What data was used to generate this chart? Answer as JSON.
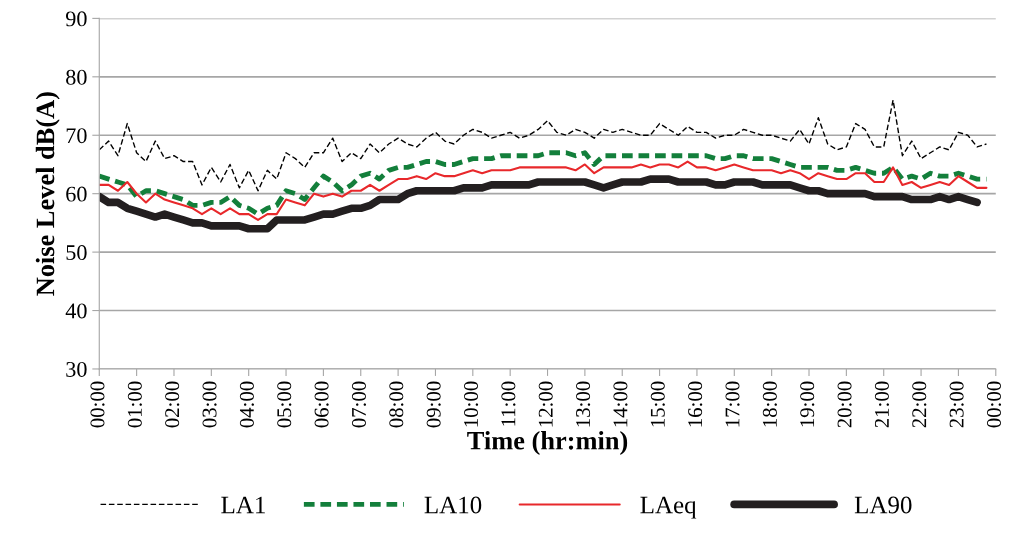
{
  "chart_data": {
    "type": "line",
    "xlabel": "Time (hr:min)",
    "ylabel": "Noise Level dB(A)",
    "x": [
      0,
      0.25,
      0.5,
      0.75,
      1,
      1.25,
      1.5,
      1.75,
      2,
      2.25,
      2.5,
      2.75,
      3,
      3.25,
      3.5,
      3.75,
      4,
      4.25,
      4.5,
      4.75,
      5,
      5.25,
      5.5,
      5.75,
      6,
      6.25,
      6.5,
      6.75,
      7,
      7.25,
      7.5,
      7.75,
      8,
      8.25,
      8.5,
      8.75,
      9,
      9.25,
      9.5,
      9.75,
      10,
      10.25,
      10.5,
      10.75,
      11,
      11.25,
      11.5,
      11.75,
      12,
      12.25,
      12.5,
      12.75,
      13,
      13.25,
      13.5,
      13.75,
      14,
      14.25,
      14.5,
      14.75,
      15,
      15.25,
      15.5,
      15.75,
      16,
      16.25,
      16.5,
      16.75,
      17,
      17.25,
      17.5,
      17.75,
      18,
      18.25,
      18.5,
      18.75,
      19,
      19.25,
      19.5,
      19.75,
      20,
      20.25,
      20.5,
      20.75,
      21,
      21.25,
      21.5,
      21.75,
      22,
      22.25,
      22.5,
      22.75,
      23,
      23.25,
      23.5,
      23.75
    ],
    "xlim": [
      0,
      24
    ],
    "xticks": [
      {
        "value": 0,
        "label": "00:00"
      },
      {
        "value": 1,
        "label": "01:00"
      },
      {
        "value": 2,
        "label": "02:00"
      },
      {
        "value": 3,
        "label": "03:00"
      },
      {
        "value": 4,
        "label": "04:00"
      },
      {
        "value": 5,
        "label": "05:00"
      },
      {
        "value": 6,
        "label": "06:00"
      },
      {
        "value": 7,
        "label": "07:00"
      },
      {
        "value": 8,
        "label": "08:00"
      },
      {
        "value": 9,
        "label": "09:00"
      },
      {
        "value": 10,
        "label": "10:00"
      },
      {
        "value": 11,
        "label": "11:00"
      },
      {
        "value": 12,
        "label": "12:00"
      },
      {
        "value": 13,
        "label": "13:00"
      },
      {
        "value": 14,
        "label": "14:00"
      },
      {
        "value": 15,
        "label": "15:00"
      },
      {
        "value": 16,
        "label": "16:00"
      },
      {
        "value": 17,
        "label": "17:00"
      },
      {
        "value": 18,
        "label": "18:00"
      },
      {
        "value": 19,
        "label": "19:00"
      },
      {
        "value": 20,
        "label": "20:00"
      },
      {
        "value": 21,
        "label": "21:00"
      },
      {
        "value": 22,
        "label": "22:00"
      },
      {
        "value": 23,
        "label": "23:00"
      },
      {
        "value": 24,
        "label": "00:00"
      }
    ],
    "ylim": [
      30,
      90
    ],
    "yticks": [
      30,
      40,
      50,
      60,
      70,
      80,
      90
    ],
    "grid": "y",
    "legend": "bottom",
    "marker": "none",
    "series": [
      {
        "name": "LA1",
        "color": "#000000",
        "line_style": "dashed",
        "values": [
          67.5,
          69,
          66.5,
          72,
          67,
          65.5,
          69,
          66,
          66.5,
          65.5,
          65.5,
          61.5,
          64.5,
          62,
          65,
          61,
          64,
          60.5,
          64,
          62.5,
          67,
          66,
          64.5,
          67,
          67,
          69.5,
          65.5,
          67,
          66,
          68.5,
          67,
          68.5,
          69.5,
          68.5,
          68,
          69.5,
          70.5,
          69,
          68.5,
          70,
          71,
          70.5,
          69.5,
          70,
          70.5,
          69.5,
          70,
          71,
          72.5,
          70.5,
          70,
          71,
          70.5,
          69.5,
          71,
          70.5,
          71,
          70.5,
          70,
          70,
          72,
          71,
          70,
          71.5,
          70.5,
          70.5,
          69.5,
          70,
          70,
          71,
          70.5,
          70,
          70,
          69.5,
          69,
          71,
          68.5,
          73,
          68.5,
          67.5,
          68,
          72,
          71,
          68,
          68,
          76,
          66.5,
          69,
          66,
          67,
          68,
          67.5,
          70.5,
          70,
          68,
          68.5
        ]
      },
      {
        "name": "LA10",
        "color": "#137f3b",
        "line_style": "dashed",
        "values": [
          63,
          62.5,
          62,
          61.5,
          59.5,
          60.5,
          60.5,
          60,
          59.5,
          59,
          58,
          58,
          58.5,
          58.5,
          59.5,
          58,
          57.5,
          56.5,
          57.5,
          58,
          60.5,
          60,
          59,
          61,
          63,
          62,
          60.5,
          61.5,
          63,
          63.5,
          62.5,
          64,
          64.5,
          64.5,
          65,
          65.5,
          65.5,
          65,
          65,
          65.5,
          66,
          66,
          66,
          66.5,
          66.5,
          66.5,
          66.5,
          66.5,
          67,
          67,
          67,
          66.5,
          67,
          65,
          66.5,
          66.5,
          66.5,
          66.5,
          66.5,
          66.5,
          66.5,
          66.5,
          66.5,
          66.5,
          66.5,
          66.5,
          66,
          66,
          66.5,
          66.5,
          66,
          66,
          66,
          65.5,
          65,
          64.5,
          64.5,
          64.5,
          64.5,
          64,
          64,
          64.5,
          64,
          63.5,
          63.5,
          64.5,
          62.5,
          63,
          62.5,
          63.5,
          63,
          63,
          63.5,
          63,
          62.5,
          62.5
        ]
      },
      {
        "name": "LAeq",
        "color": "#e8282b",
        "line_style": "solid",
        "values": [
          61.5,
          61.5,
          60.5,
          62,
          60,
          58.5,
          60,
          59,
          58.5,
          58,
          57.5,
          56.5,
          57.5,
          56.5,
          57.5,
          56.5,
          56.5,
          55.5,
          56.5,
          56.5,
          59,
          58.5,
          58,
          60,
          59.5,
          60,
          59.5,
          60.5,
          60.5,
          61.5,
          60.5,
          61.5,
          62.5,
          62.5,
          63,
          62.5,
          63.5,
          63,
          63,
          63.5,
          64,
          63.5,
          64,
          64,
          64,
          64.5,
          64.5,
          64.5,
          64.5,
          64.5,
          64.5,
          64,
          65,
          63.5,
          64.5,
          64.5,
          64.5,
          64.5,
          65,
          64.5,
          65,
          65,
          64.5,
          65.5,
          64.5,
          64.5,
          64,
          64.5,
          65,
          64.5,
          64,
          64,
          64,
          63.5,
          64,
          63.5,
          62.5,
          63.5,
          63,
          62.5,
          62.5,
          63.5,
          63.5,
          62,
          62,
          64.5,
          61.5,
          62,
          61,
          61.5,
          62,
          61.5,
          63,
          62,
          61,
          61
        ]
      },
      {
        "name": "LA90",
        "color": "#231f20",
        "line_style": "solid",
        "values": [
          59.5,
          58.5,
          58.5,
          57.5,
          57,
          56.5,
          56,
          56.5,
          56,
          55.5,
          55,
          55,
          54.5,
          54.5,
          54.5,
          54.5,
          54,
          54,
          54,
          55.5,
          55.5,
          55.5,
          55.5,
          56,
          56.5,
          56.5,
          57,
          57.5,
          57.5,
          58,
          59,
          59,
          59,
          60,
          60.5,
          60.5,
          60.5,
          60.5,
          60.5,
          61,
          61,
          61,
          61.5,
          61.5,
          61.5,
          61.5,
          61.5,
          62,
          62,
          62,
          62,
          62,
          62,
          61.5,
          61,
          61.5,
          62,
          62,
          62,
          62.5,
          62.5,
          62.5,
          62,
          62,
          62,
          62,
          61.5,
          61.5,
          62,
          62,
          62,
          61.5,
          61.5,
          61.5,
          61.5,
          61,
          60.5,
          60.5,
          60,
          60,
          60,
          60,
          60,
          59.5,
          59.5,
          59.5,
          59.5,
          59,
          59,
          59,
          59.5,
          59,
          59.5,
          59,
          58.5,
          null
        ]
      }
    ]
  }
}
